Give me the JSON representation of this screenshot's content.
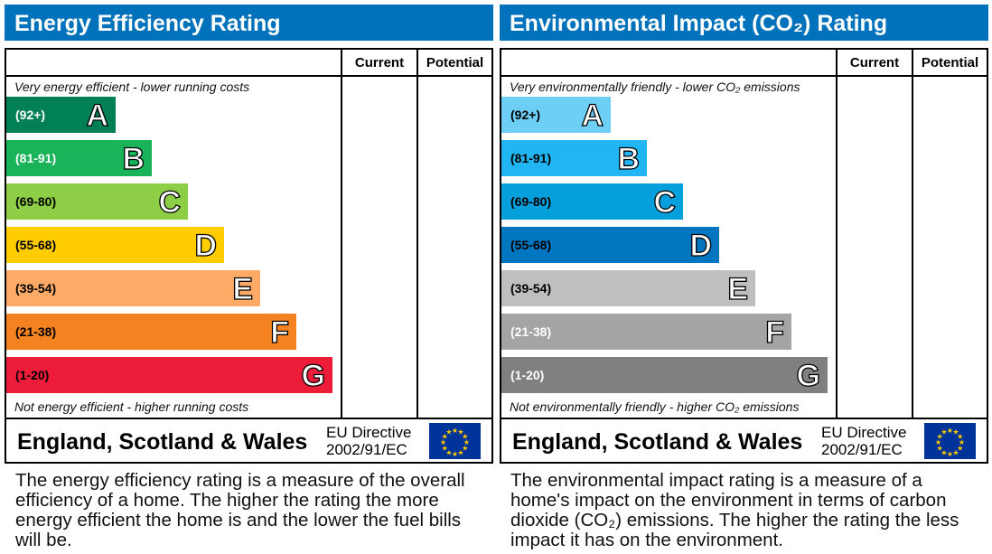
{
  "column_headers": {
    "current": "Current",
    "potential": "Potential"
  },
  "region": "England, Scotland & Wales",
  "directive": {
    "line1": "EU Directive",
    "line2": "2002/91/EC"
  },
  "chart_data": [
    {
      "type": "bar",
      "title": "Energy Efficiency Rating",
      "top_caption": "Very energy efficient - lower running costs",
      "bottom_caption": "Not energy efficient - higher running costs",
      "categories": [
        "A",
        "B",
        "C",
        "D",
        "E",
        "F",
        "G"
      ],
      "ranges": [
        "(92+)",
        "(81-91)",
        "(69-80)",
        "(55-68)",
        "(39-54)",
        "(21-38)",
        "(1-20)"
      ],
      "colors": [
        "#008054",
        "#19b459",
        "#8dce46",
        "#ffcc00",
        "#fcaa65",
        "#f58220",
        "#ed1c39"
      ],
      "range_text_colors": [
        "#fff",
        "#fff",
        "#000",
        "#000",
        "#000",
        "#000",
        "#000"
      ],
      "current": null,
      "potential": null,
      "description": "The energy efficiency rating is a measure of the overall efficiency of a home. The higher the rating the more energy efficient the home is and the lower the fuel bills will be."
    },
    {
      "type": "bar",
      "title": "Environmental Impact (CO₂) Rating",
      "top_caption": "Very environmentally friendly - lower CO₂ emissions",
      "bottom_caption": "Not environmentally friendly - higher CO₂ emissions",
      "categories": [
        "A",
        "B",
        "C",
        "D",
        "E",
        "F",
        "G"
      ],
      "ranges": [
        "(92+)",
        "(81-91)",
        "(69-80)",
        "(55-68)",
        "(39-54)",
        "(21-38)",
        "(1-20)"
      ],
      "colors": [
        "#6dcff6",
        "#22b5f4",
        "#059fdb",
        "#0076c0",
        "#bfbfbf",
        "#a4a4a4",
        "#808080"
      ],
      "range_text_colors": [
        "#000",
        "#000",
        "#000",
        "#000",
        "#000",
        "#fff",
        "#fff"
      ],
      "current": null,
      "potential": null,
      "description": "The environmental impact rating is a measure of a home's impact on the environment in terms of carbon dioxide (CO₂) emissions. The higher the rating the less impact it has on the environment."
    }
  ]
}
